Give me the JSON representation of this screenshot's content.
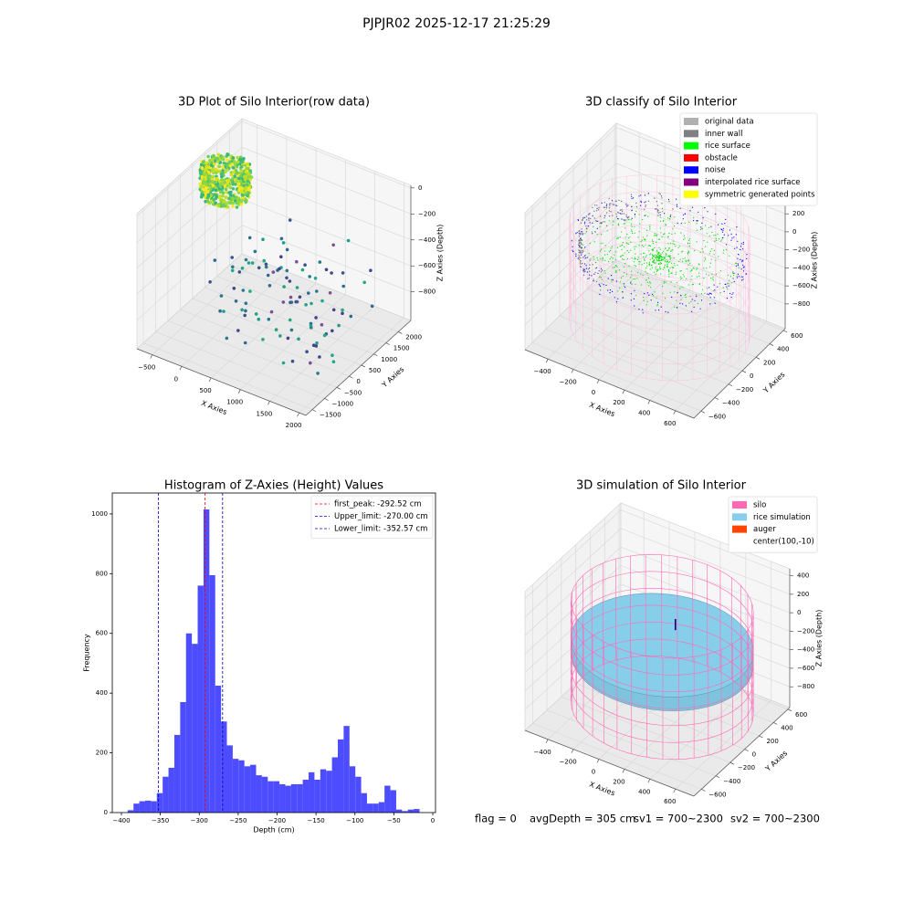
{
  "title": "PJPJR02 2025-12-17 21:25:29",
  "annotations": [
    "flag = 0",
    "avgDepth = 305 cm",
    "sv1 = 700~2300",
    "sv2 = 700~2300"
  ],
  "chart_data": [
    {
      "type": "scatter3d",
      "title": "3D Plot of Silo Interior(row data)",
      "xlabel": "X Axies",
      "ylabel": "Y Axies",
      "zlabel": "Z Axies (Depth)",
      "xlim": [
        -760,
        2115
      ],
      "ylim": [
        -1760,
        2510
      ],
      "zlim": [
        -1020,
        20
      ],
      "xticks": [
        {
          "value": -500,
          "label": "−500"
        },
        0,
        500,
        1000,
        1500,
        2000
      ],
      "yticks": [
        {
          "value": -1500,
          "label": "−1500"
        },
        {
          "value": -1000,
          "label": "−1000"
        },
        {
          "value": -500,
          "label": "−500"
        },
        0,
        500,
        1000,
        1500,
        2000
      ],
      "zticks": [
        0,
        {
          "value": -200,
          "label": "−200"
        },
        {
          "value": -400,
          "label": "−400"
        },
        {
          "value": -600,
          "label": "−600"
        },
        {
          "value": -800,
          "label": "−800"
        }
      ]
    },
    {
      "type": "scatter3d",
      "title": "3D classify of Silo Interior",
      "xlabel": "X Axies",
      "ylabel": "Y Axies",
      "zlabel": "Z Axies (Depth)",
      "xlim": [
        -580,
        745
      ],
      "ylim": [
        -705,
        625
      ],
      "zlim": [
        -1075,
        445
      ],
      "xticks": [
        {
          "value": -400,
          "label": "−400"
        },
        {
          "value": -200,
          "label": "−200"
        },
        0,
        200,
        400,
        600
      ],
      "yticks": [
        {
          "value": -600,
          "label": "−600"
        },
        {
          "value": -400,
          "label": "−400"
        },
        {
          "value": -200,
          "label": "−200"
        },
        0,
        200,
        400,
        600
      ],
      "zticks": [
        400,
        200,
        0,
        {
          "value": -200,
          "label": "−200"
        },
        {
          "value": -400,
          "label": "−400"
        },
        {
          "value": -600,
          "label": "−600"
        },
        {
          "value": -800,
          "label": "−800"
        }
      ],
      "legend_position": "upper right",
      "legend": [
        {
          "name": "original data",
          "color": "#b0b0b0"
        },
        {
          "name": "inner wall",
          "color": "#808080"
        },
        {
          "name": "rice surface",
          "color": "#00ff00"
        },
        {
          "name": "obstacle",
          "color": "#ff0000"
        },
        {
          "name": "noise",
          "color": "#0000ff"
        },
        {
          "name": "interpolated rice surface",
          "color": "#800080"
        },
        {
          "name": "symmetric generated points",
          "color": "#ffff00"
        }
      ]
    },
    {
      "type": "histogram",
      "title": "Histogram of Z-Axies (Height) Values",
      "xlabel": "Depth (cm)",
      "ylabel": "Frequency",
      "color": "#4d4dff",
      "bins": [
        -392,
        -384.5,
        -377,
        -369.5,
        -362,
        -354.5,
        -347,
        -339.5,
        -332,
        -324.5,
        -317,
        -309.5,
        -302,
        -294.5,
        -287,
        -279.5,
        -272,
        -264.5,
        -257,
        -249.5,
        -242,
        -234.5,
        -227,
        -219.5,
        -212,
        -204.5,
        -197,
        -189.5,
        -182,
        -174.5,
        -167,
        -159.5,
        -152,
        -144.5,
        -137,
        -129.5,
        -122,
        -114.5,
        -107,
        -99.5,
        -92,
        -84.5,
        -77,
        -69.5,
        -62,
        -54.5,
        -47,
        -39.5,
        -32,
        -24.5,
        -17
      ],
      "values": [
        8,
        30,
        38,
        40,
        38,
        65,
        120,
        150,
        260,
        370,
        600,
        565,
        760,
        1015,
        795,
        425,
        305,
        225,
        180,
        175,
        155,
        160,
        125,
        120,
        105,
        105,
        95,
        90,
        95,
        95,
        110,
        135,
        110,
        145,
        140,
        185,
        245,
        290,
        155,
        120,
        65,
        30,
        30,
        35,
        90,
        75,
        10,
        5,
        10,
        12
      ],
      "xlim": [
        -411.7,
        3.5
      ],
      "ylim": [
        0,
        1070
      ],
      "xticks": [
        {
          "value": -400,
          "label": "−400"
        },
        {
          "value": -350,
          "label": "−350"
        },
        {
          "value": -300,
          "label": "−300"
        },
        {
          "value": -250,
          "label": "−250"
        },
        {
          "value": -200,
          "label": "−200"
        },
        {
          "value": -150,
          "label": "−150"
        },
        {
          "value": -100,
          "label": "−100"
        },
        {
          "value": -50,
          "label": "−50"
        },
        0
      ],
      "yticks": [
        0,
        200,
        400,
        600,
        800,
        1000
      ],
      "legend_position": "upper right",
      "vlines": [
        {
          "name": "first_peak: -292.52 cm",
          "color": "#ff0000",
          "value": -292.52
        },
        {
          "name": "Upper_limit: -270.00 cm",
          "color": "#0000cc",
          "value": -270
        },
        {
          "name": "Lower_limit: -352.57 cm",
          "color": "#0000cc",
          "value": -352.57
        }
      ]
    },
    {
      "type": "scatter3d",
      "title": "3D simulation of Silo Interior",
      "xlabel": "X Axies",
      "ylabel": "Y Axies",
      "zlabel": "Z Axies (Depth)",
      "xlim": [
        -580,
        745
      ],
      "ylim": [
        -705,
        625
      ],
      "zlim": [
        -1025,
        475
      ],
      "xticks": [
        {
          "value": -400,
          "label": "−400"
        },
        {
          "value": -200,
          "label": "−200"
        },
        0,
        200,
        400,
        600
      ],
      "yticks": [
        {
          "value": -600,
          "label": "−600"
        },
        {
          "value": -400,
          "label": "−400"
        },
        {
          "value": -200,
          "label": "−200"
        },
        0,
        200,
        400,
        600
      ],
      "zticks": [
        400,
        200,
        0,
        {
          "value": -200,
          "label": "−200"
        },
        {
          "value": -400,
          "label": "−400"
        },
        {
          "value": -600,
          "label": "−600"
        },
        {
          "value": -800,
          "label": "−800"
        }
      ],
      "legend_position": "upper right",
      "legend": [
        {
          "name": "silo",
          "color": "#ff69b4"
        },
        {
          "name": "rice simulation",
          "color": "#87ceeb"
        },
        {
          "name": "auger",
          "color": "#ff4500"
        },
        {
          "name": "center(100,-10)"
        }
      ]
    }
  ]
}
